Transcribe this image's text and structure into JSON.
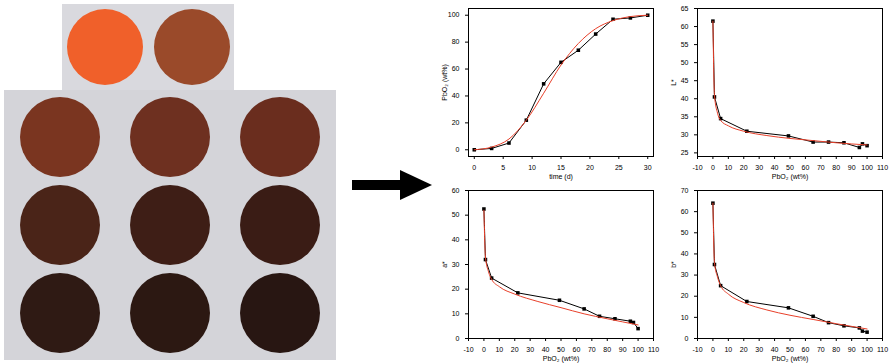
{
  "chart_data": [
    {
      "type": "line",
      "xlabel": "time (d)",
      "ylabel": "PbO₂ (wt%)",
      "xlim": [
        -1,
        31
      ],
      "xticks": [
        0,
        5,
        10,
        15,
        20,
        25,
        30
      ],
      "ylim": [
        -5,
        105
      ],
      "yticks": [
        0,
        20,
        40,
        60,
        80,
        100
      ],
      "grid": false,
      "series": [
        {
          "color": "#000000",
          "marker": "square",
          "line_style": "solid",
          "x": [
            0,
            3,
            6,
            9,
            12,
            15,
            18,
            21,
            24,
            27,
            30
          ],
          "values": [
            0,
            1,
            5,
            22,
            49,
            65,
            74,
            86,
            97,
            98,
            100
          ]
        },
        {
          "color": "#e8402a",
          "line_style": "solid",
          "x": [
            0,
            3,
            6,
            9,
            12,
            15,
            18,
            21,
            24,
            27,
            30
          ],
          "values": [
            0,
            2,
            8,
            22,
            42,
            63,
            79,
            90,
            96,
            99,
            100
          ]
        }
      ]
    },
    {
      "type": "line",
      "xlabel": "PbO₂ (wt%)",
      "ylabel": "L*",
      "xlim": [
        -10,
        110
      ],
      "xticks": [
        -10,
        0,
        10,
        20,
        30,
        40,
        50,
        60,
        70,
        80,
        90,
        100,
        110
      ],
      "ylim": [
        24,
        65
      ],
      "yticks": [
        25,
        30,
        35,
        40,
        45,
        50,
        55,
        60,
        65
      ],
      "grid": false,
      "series": [
        {
          "color": "#000000",
          "marker": "square",
          "line_style": "solid",
          "x": [
            0,
            1,
            5,
            22,
            49,
            65,
            75,
            85,
            95,
            97,
            100
          ],
          "values": [
            61.5,
            40.5,
            34.5,
            31,
            29.7,
            28,
            28,
            27.8,
            26.5,
            27.5,
            27
          ]
        },
        {
          "color": "#e8402a",
          "line_style": "solid",
          "x": [
            0,
            1,
            3,
            5,
            10,
            20,
            35,
            50,
            65,
            80,
            100
          ],
          "values": [
            61.5,
            41,
            36,
            34,
            32.5,
            31,
            29.8,
            29,
            28.4,
            27.8,
            27.2
          ]
        }
      ]
    },
    {
      "type": "line",
      "xlabel": "PbO₂ (wt%)",
      "ylabel": "a*",
      "xlim": [
        -10,
        110
      ],
      "xticks": [
        -10,
        0,
        10,
        20,
        30,
        40,
        50,
        60,
        70,
        80,
        90,
        100,
        110
      ],
      "ylim": [
        0,
        60
      ],
      "yticks": [
        0,
        10,
        20,
        30,
        40,
        50,
        60
      ],
      "grid": false,
      "series": [
        {
          "color": "#000000",
          "marker": "square",
          "line_style": "solid",
          "x": [
            0,
            1,
            5,
            22,
            49,
            65,
            75,
            85,
            95,
            97,
            100
          ],
          "values": [
            52.5,
            32,
            24.5,
            18.5,
            15.5,
            12,
            9,
            8,
            7,
            6.5,
            4
          ]
        },
        {
          "color": "#e8402a",
          "line_style": "solid",
          "x": [
            0,
            1,
            3,
            5,
            10,
            20,
            35,
            50,
            65,
            80,
            100
          ],
          "values": [
            52,
            33,
            27,
            24,
            21,
            18,
            15,
            12.5,
            10,
            8,
            5.5
          ]
        }
      ]
    },
    {
      "type": "line",
      "xlabel": "PbO₂ (wt%)",
      "ylabel": "b*",
      "xlim": [
        -10,
        110
      ],
      "xticks": [
        -10,
        0,
        10,
        20,
        30,
        40,
        50,
        60,
        70,
        80,
        90,
        100,
        110
      ],
      "ylim": [
        0,
        70
      ],
      "yticks": [
        0,
        10,
        20,
        30,
        40,
        50,
        60,
        70
      ],
      "grid": false,
      "series": [
        {
          "color": "#000000",
          "marker": "square",
          "line_style": "solid",
          "x": [
            0,
            1,
            5,
            22,
            49,
            65,
            75,
            85,
            95,
            97,
            100
          ],
          "values": [
            64,
            35,
            25,
            17.5,
            14.5,
            10.5,
            7.5,
            6,
            5,
            3.5,
            3
          ]
        },
        {
          "color": "#e8402a",
          "line_style": "solid",
          "x": [
            0,
            1,
            3,
            5,
            10,
            20,
            35,
            50,
            65,
            80,
            100
          ],
          "values": [
            64,
            36,
            29,
            25,
            21,
            17,
            13.5,
            11,
            9,
            7,
            4.5
          ]
        }
      ]
    }
  ]
}
